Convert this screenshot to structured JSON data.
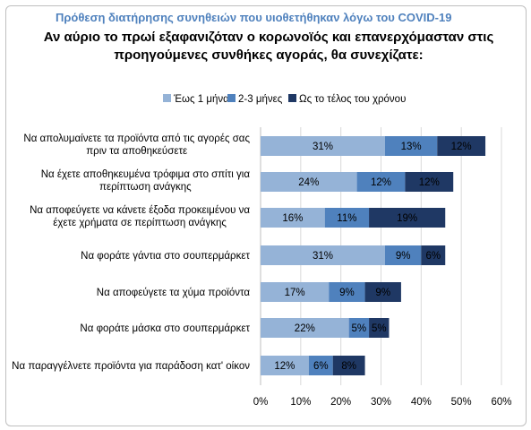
{
  "header": {
    "subtitle": "Πρόθεση διατήρησης συνηθειών που υιοθετήθηκαν λόγω του COVID-19",
    "title_line1": "Αν αύριο το πρωί εξαφανιζόταν ο κορωνοϊός και επανερχόμασταν στις",
    "title_line2": "προηγούμενες συνθήκες αγοράς, θα συνεχίζατε:"
  },
  "chart_data": {
    "type": "bar",
    "orientation": "horizontal",
    "stacked": true,
    "categories": [
      [
        "Να απολυμαίνετε τα προϊόντα από τις αγορές σας",
        "πριν τα αποθηκεύσετε"
      ],
      [
        "Να έχετε αποθηκευμένα τρόφιμα στο σπίτι για",
        "περίπτωση ανάγκης"
      ],
      [
        "Να αποφεύγετε να κάνετε έξοδα προκειμένου να",
        "έχετε χρήματα σε περίπτωση ανάγκης"
      ],
      [
        "Να φοράτε γάντια στο σουπερμάρκετ"
      ],
      [
        "Να αποφεύγετε τα χύμα προϊόντα"
      ],
      [
        "Να φοράτε μάσκα στο σουπερμάρκετ"
      ],
      [
        "Να παραγγέλνετε προϊόντα για παράδοση κατ' οίκον"
      ]
    ],
    "series": [
      {
        "name": "Έως 1 μήνα",
        "color": "#95b3d7",
        "values": [
          31,
          24,
          16,
          31,
          17,
          22,
          12
        ]
      },
      {
        "name": "2-3 μήνες",
        "color": "#4f81bd",
        "values": [
          13,
          12,
          11,
          9,
          9,
          5,
          6
        ]
      },
      {
        "name": "Ως το τέλος του χρόνου",
        "color": "#1f3864",
        "values": [
          12,
          12,
          19,
          6,
          9,
          5,
          8
        ]
      }
    ],
    "xlim": [
      0,
      60
    ],
    "xticks": [
      "0%",
      "10%",
      "20%",
      "30%",
      "40%",
      "50%",
      "60%"
    ],
    "legend_position": "top",
    "grid": true,
    "value_suffix": "%"
  }
}
